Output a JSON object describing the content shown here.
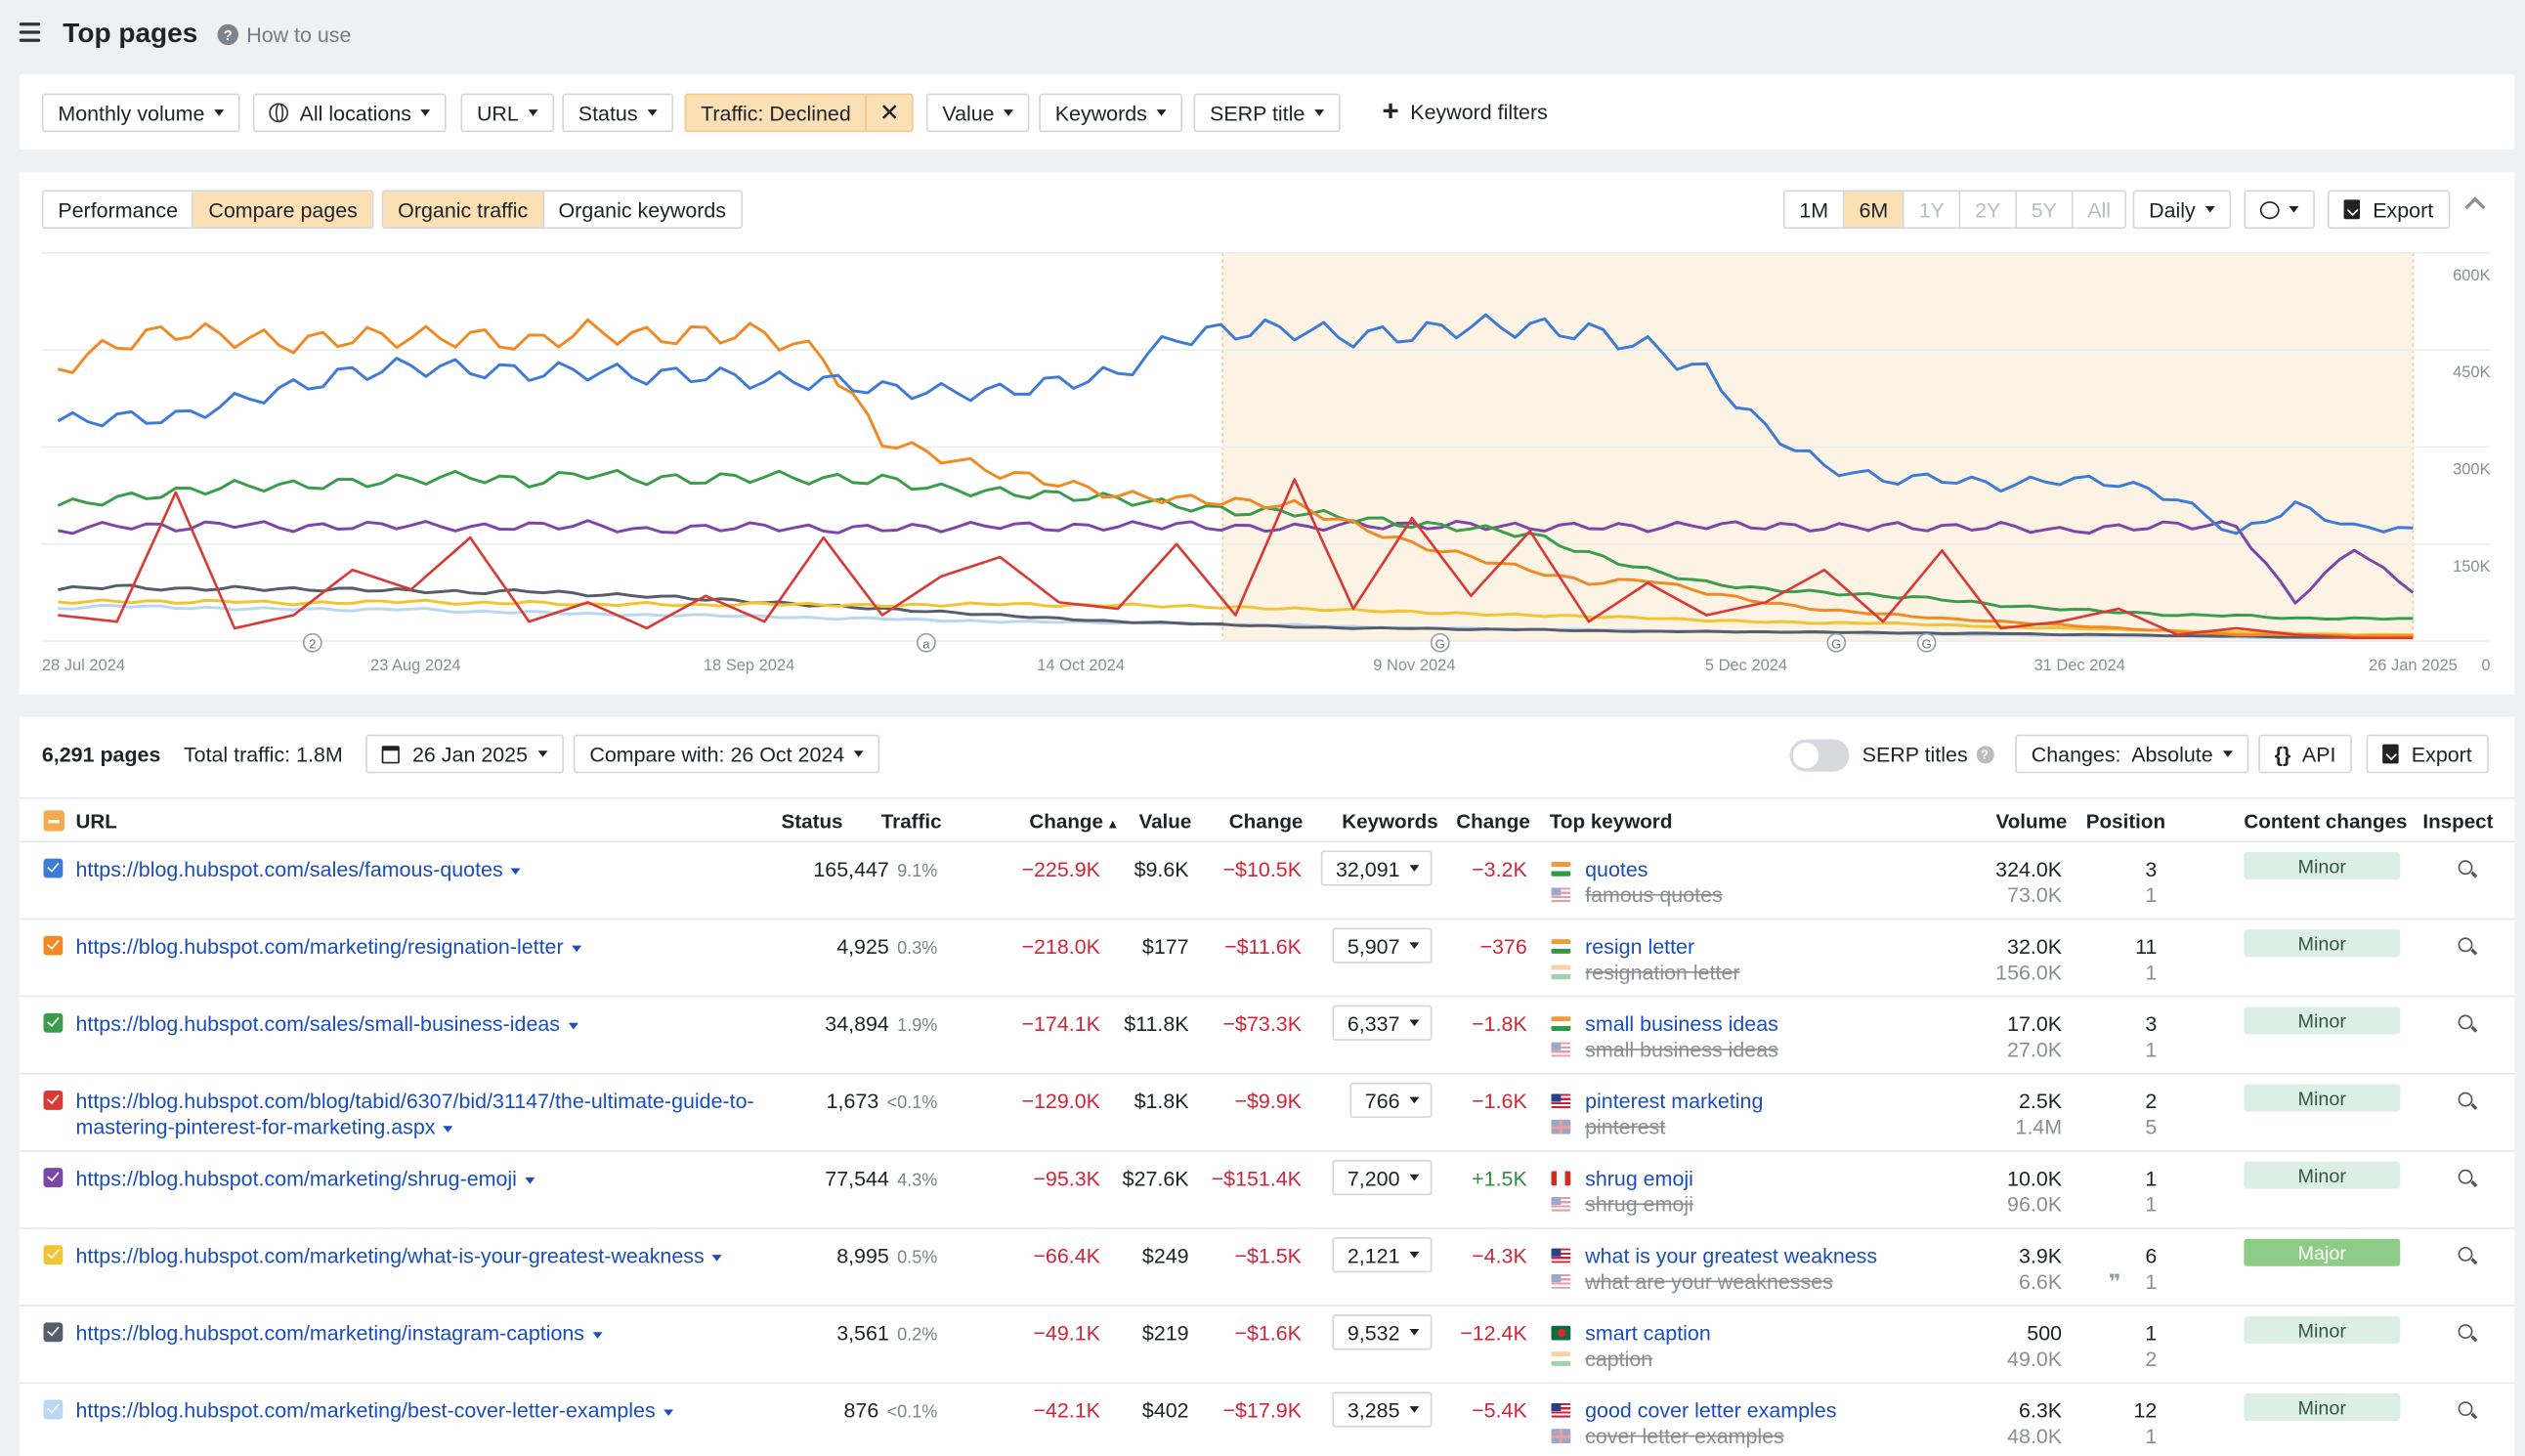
{
  "header": {
    "title": "Top pages",
    "howto": "How to use"
  },
  "filters": {
    "monthly_volume": "Monthly volume",
    "locations": "All locations",
    "url": "URL",
    "status": "Status",
    "traffic": "Traffic: Declined",
    "value": "Value",
    "keywords": "Keywords",
    "serp_title": "SERP title",
    "keyword_filters": "Keyword filters"
  },
  "chart_panel": {
    "tabs": [
      "Performance",
      "Compare pages"
    ],
    "metric_tabs": [
      "Organic traffic",
      "Organic keywords"
    ],
    "ranges": [
      "1M",
      "6M",
      "1Y",
      "2Y",
      "5Y",
      "All"
    ],
    "interval": "Daily",
    "export": "Export"
  },
  "chart_data": {
    "type": "line",
    "x_labels": [
      "28 Jul 2024",
      "23 Aug 2024",
      "18 Sep 2024",
      "14 Oct 2024",
      "9 Nov 2024",
      "5 Dec 2024",
      "31 Dec 2024",
      "26 Jan 2025"
    ],
    "y_ticks": [
      "600K",
      "450K",
      "300K",
      "150K",
      "0"
    ],
    "ylim": [
      0,
      600000
    ],
    "highlight_range": [
      "26 Oct 2024",
      "26 Jan 2025"
    ],
    "event_markers": [
      "2",
      "a",
      "G",
      "G",
      "G"
    ],
    "series": [
      {
        "color": "#3d7bd6",
        "values": [
          340000,
          345000,
          345000,
          370000,
          392000,
          415000,
          425000,
          420000,
          415000,
          418000,
          410000,
          412000,
          402000,
          402000,
          390000,
          385000,
          385000,
          400000,
          412000,
          470000,
          480000,
          482000,
          470000,
          475000,
          488000,
          485000,
          478000,
          455000,
          415000,
          328000,
          270000,
          250000,
          252000,
          240000,
          250000,
          245000,
          220000,
          165000,
          210000,
          175000,
          175000
        ]
      },
      {
        "color": "#f08a24",
        "values": [
          420000,
          460000,
          480000,
          470000,
          460000,
          470000,
          470000,
          470000,
          460000,
          480000,
          470000,
          475000,
          475000,
          440000,
          310000,
          285000,
          260000,
          245000,
          225000,
          220000,
          215000,
          210000,
          180000,
          150000,
          130000,
          110000,
          90000,
          95000,
          75000,
          60000,
          48000,
          42000,
          35000,
          30000,
          25000,
          20000,
          15000,
          10000,
          10000,
          8000,
          8000
        ]
      },
      {
        "color": "#3a9d4c",
        "values": [
          210000,
          220000,
          230000,
          240000,
          240000,
          245000,
          250000,
          255000,
          245000,
          260000,
          250000,
          250000,
          255000,
          250000,
          250000,
          235000,
          230000,
          225000,
          220000,
          210000,
          200000,
          200000,
          190000,
          180000,
          175000,
          165000,
          135000,
          110000,
          90000,
          80000,
          75000,
          70000,
          65000,
          55000,
          50000,
          45000,
          40000,
          40000,
          35000,
          35000,
          35000
        ]
      },
      {
        "color": "#7e45a8",
        "values": [
          170000,
          180000,
          175000,
          182000,
          175000,
          178000,
          180000,
          175000,
          178000,
          180000,
          170000,
          175000,
          178000,
          172000,
          175000,
          175000,
          180000,
          175000,
          178000,
          180000,
          175000,
          175000,
          180000,
          178000,
          180000,
          175000,
          178000,
          175000,
          180000,
          178000,
          175000,
          178000,
          175000,
          178000,
          170000,
          175000,
          180000,
          178000,
          60000,
          145000,
          75000
        ]
      },
      {
        "color": "#d93a35",
        "values": [
          40000,
          30000,
          230000,
          20000,
          40000,
          110000,
          80000,
          160000,
          30000,
          60000,
          20000,
          70000,
          30000,
          160000,
          40000,
          100000,
          130000,
          60000,
          50000,
          150000,
          40000,
          250000,
          50000,
          190000,
          70000,
          170000,
          30000,
          90000,
          40000,
          60000,
          110000,
          30000,
          140000,
          20000,
          30000,
          50000,
          10000,
          20000,
          10000,
          5000,
          5000
        ]
      },
      {
        "color": "#f2c432",
        "values": [
          60000,
          62000,
          60000,
          62000,
          58000,
          60000,
          62000,
          58000,
          60000,
          56000,
          58000,
          55000,
          58000,
          56000,
          55000,
          56000,
          58000,
          55000,
          56000,
          54000,
          52000,
          50000,
          48000,
          45000,
          42000,
          40000,
          38000,
          36000,
          32000,
          30000,
          28000,
          28000,
          25000,
          22000,
          20000,
          18000,
          16000,
          14000,
          12000,
          10000,
          10000
        ]
      },
      {
        "color": "#565e6b",
        "values": [
          80000,
          85000,
          80000,
          82000,
          80000,
          80000,
          78000,
          75000,
          78000,
          72000,
          70000,
          65000,
          60000,
          55000,
          50000,
          45000,
          40000,
          35000,
          30000,
          28000,
          25000,
          22000,
          20000,
          20000,
          18000,
          18000,
          16000,
          15000,
          15000,
          14000,
          14000,
          13000,
          12000,
          12000,
          10000,
          10000,
          8000,
          8000,
          6000,
          6000,
          6000
        ]
      },
      {
        "color": "#b9d7f2",
        "values": [
          50000,
          55000,
          52000,
          50000,
          50000,
          48000,
          50000,
          45000,
          45000,
          42000,
          40000,
          40000,
          38000,
          35000,
          35000,
          32000,
          30000,
          30000,
          28000,
          28000,
          25000,
          25000,
          22000,
          20000,
          20000,
          18000,
          18000,
          16000,
          15000,
          14000,
          13000,
          12000,
          10000,
          10000,
          9000,
          8000,
          8000,
          6000,
          5000,
          5000,
          5000
        ]
      }
    ]
  },
  "table": {
    "pages": "6,291 pages",
    "total_traffic": "Total traffic: 1.8M",
    "date": "26 Jan 2025",
    "compare": "Compare with: 26 Oct 2024",
    "serp_titles": "SERP titles",
    "changes": "Changes:  Absolute",
    "api": "API",
    "export": "Export",
    "columns": {
      "url": "URL",
      "status": "Status",
      "traffic": "Traffic",
      "change": "Change",
      "value": "Value",
      "change2": "Change",
      "keywords": "Keywords",
      "change3": "Change",
      "top_keyword": "Top keyword",
      "volume": "Volume",
      "position": "Position",
      "content_changes": "Content changes",
      "inspect": "Inspect"
    },
    "rows": [
      {
        "color": "#3d7bd6",
        "url": "https://blog.hubspot.com/sales/famous-quotes",
        "traffic": "165,447",
        "pct": "9.1%",
        "change": "−225.9K",
        "value": "$9.6K",
        "value_change": "−$10.5K",
        "keywords": "32,091",
        "kw_change": "−3.2K",
        "kw_change_sign": "neg",
        "kw1": "quotes",
        "flag1": "in",
        "kw2": "famous quotes",
        "flag2": "us",
        "vol1": "324.0K",
        "vol2": "73.0K",
        "pos1": "3",
        "pos2": "1",
        "content": "Minor"
      },
      {
        "color": "#f08a24",
        "url": "https://blog.hubspot.com/marketing/resignation-letter",
        "traffic": "4,925",
        "pct": "0.3%",
        "change": "−218.0K",
        "value": "$177",
        "value_change": "−$11.6K",
        "keywords": "5,907",
        "kw_change": "−376",
        "kw_change_sign": "neg",
        "kw1": "resign letter",
        "flag1": "in",
        "kw2": "resignation letter",
        "flag2": "in",
        "vol1": "32.0K",
        "vol2": "156.0K",
        "pos1": "11",
        "pos2": "1",
        "content": "Minor"
      },
      {
        "color": "#3a9d4c",
        "url": "https://blog.hubspot.com/sales/small-business-ideas",
        "traffic": "34,894",
        "pct": "1.9%",
        "change": "−174.1K",
        "value": "$11.8K",
        "value_change": "−$73.3K",
        "keywords": "6,337",
        "kw_change": "−1.8K",
        "kw_change_sign": "neg",
        "kw1": "small business ideas",
        "flag1": "in",
        "kw2": "small business ideas",
        "flag2": "us",
        "vol1": "17.0K",
        "vol2": "27.0K",
        "pos1": "3",
        "pos2": "1",
        "content": "Minor"
      },
      {
        "color": "#d93a35",
        "url": "https://blog.hubspot.com/blog/tabid/6307/bid/31147/the-ultimate-guide-to-mastering-pinterest-for-marketing.aspx",
        "traffic": "1,673",
        "pct": "<0.1%",
        "change": "−129.0K",
        "value": "$1.8K",
        "value_change": "−$9.9K",
        "keywords": "766",
        "kw_change": "−1.6K",
        "kw_change_sign": "neg",
        "kw1": "pinterest marketing",
        "flag1": "us",
        "kw2": "pinterest",
        "flag2": "gb",
        "vol1": "2.5K",
        "vol2": "1.4M",
        "pos1": "2",
        "pos2": "5",
        "content": "Minor"
      },
      {
        "color": "#7e45a8",
        "url": "https://blog.hubspot.com/marketing/shrug-emoji",
        "traffic": "77,544",
        "pct": "4.3%",
        "change": "−95.3K",
        "value": "$27.6K",
        "value_change": "−$151.4K",
        "keywords": "7,200",
        "kw_change": "+1.5K",
        "kw_change_sign": "pos",
        "kw1": "shrug emoji",
        "flag1": "ca",
        "kw2": "shrug emoji",
        "flag2": "us",
        "vol1": "10.0K",
        "vol2": "96.0K",
        "pos1": "1",
        "pos2": "1",
        "content": "Minor"
      },
      {
        "color": "#f2c432",
        "url": "https://blog.hubspot.com/marketing/what-is-your-greatest-weakness",
        "traffic": "8,995",
        "pct": "0.5%",
        "change": "−66.4K",
        "value": "$249",
        "value_change": "−$1.5K",
        "keywords": "2,121",
        "kw_change": "−4.3K",
        "kw_change_sign": "neg",
        "kw1": "what is your greatest weakness",
        "flag1": "us",
        "kw2": "what are your weaknesses",
        "flag2": "us",
        "vol1": "3.9K",
        "vol2": "6.6K",
        "pos1": "6",
        "pos2": "1",
        "content": "Major"
      },
      {
        "color": "#565e6b",
        "url": "https://blog.hubspot.com/marketing/instagram-captions",
        "traffic": "3,561",
        "pct": "0.2%",
        "change": "−49.1K",
        "value": "$219",
        "value_change": "−$1.6K",
        "keywords": "9,532",
        "kw_change": "−12.4K",
        "kw_change_sign": "neg",
        "kw1": "smart caption",
        "flag1": "bd",
        "kw2": "caption",
        "flag2": "in",
        "vol1": "500",
        "vol2": "49.0K",
        "pos1": "1",
        "pos2": "2",
        "content": "Minor"
      },
      {
        "color": "#b9d7f2",
        "url": "https://blog.hubspot.com/marketing/best-cover-letter-examples",
        "traffic": "876",
        "pct": "<0.1%",
        "change": "−42.1K",
        "value": "$402",
        "value_change": "−$17.9K",
        "keywords": "3,285",
        "kw_change": "−5.4K",
        "kw_change_sign": "neg",
        "kw1": "good cover letter examples",
        "flag1": "us",
        "kw2": "cover letter examples",
        "flag2": "gb",
        "vol1": "6.3K",
        "vol2": "48.0K",
        "pos1": "12",
        "pos2": "1",
        "content": "Minor"
      }
    ]
  }
}
